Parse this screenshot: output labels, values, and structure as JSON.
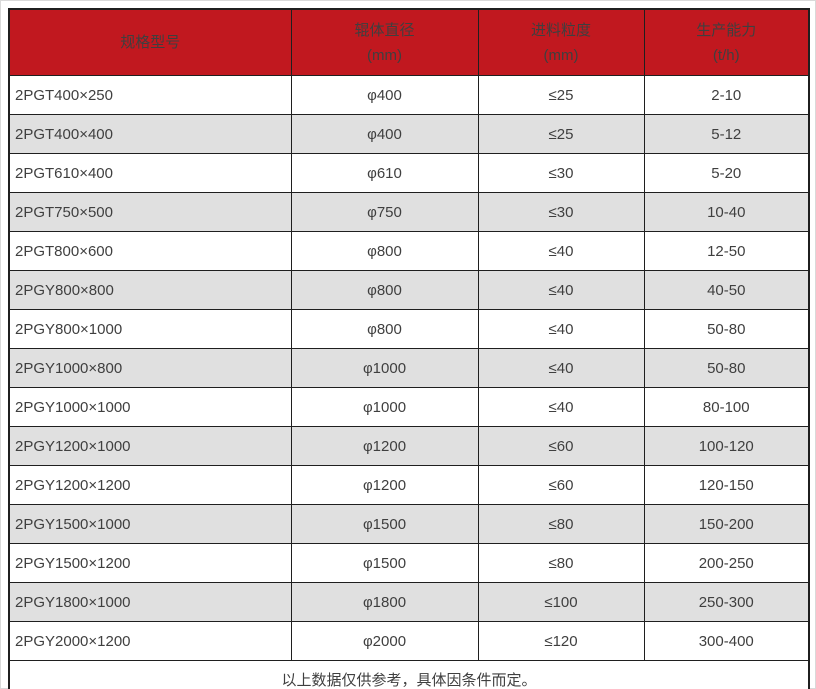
{
  "table": {
    "columns": [
      {
        "label": "规格型号",
        "unit": ""
      },
      {
        "label": "辊体直径",
        "unit": "(mm)"
      },
      {
        "label": "进料粒度",
        "unit": "(mm)"
      },
      {
        "label": "生产能力",
        "unit": "(t/h)"
      }
    ],
    "footer_note": "以上数据仅供参考，具体因条件而定。",
    "colors": {
      "header_bg": "#c1181f",
      "header_text": "#ffffff",
      "row_bg": "#ffffff",
      "row_alt_bg": "#e0e0e0",
      "border": "#1f1f1f",
      "text": "#3f3f3f"
    }
  },
  "chart_data": {
    "type": "table",
    "title": "",
    "columns": [
      "规格型号",
      "辊体直径 (mm)",
      "进料粒度 (mm)",
      "生产能力 (t/h)"
    ],
    "rows": [
      [
        "2PGT400×250",
        "φ400",
        "≤25",
        "2-10"
      ],
      [
        "2PGT400×400",
        "φ400",
        "≤25",
        "5-12"
      ],
      [
        "2PGT610×400",
        "φ610",
        "≤30",
        "5-20"
      ],
      [
        "2PGT750×500",
        "φ750",
        "≤30",
        "10-40"
      ],
      [
        "2PGT800×600",
        "φ800",
        "≤40",
        "12-50"
      ],
      [
        "2PGY800×800",
        "φ800",
        "≤40",
        "40-50"
      ],
      [
        "2PGY800×1000",
        "φ800",
        "≤40",
        "50-80"
      ],
      [
        "2PGY1000×800",
        "φ1000",
        "≤40",
        "50-80"
      ],
      [
        "2PGY1000×1000",
        "φ1000",
        "≤40",
        "80-100"
      ],
      [
        "2PGY1200×1000",
        "φ1200",
        "≤60",
        "100-120"
      ],
      [
        "2PGY1200×1200",
        "φ1200",
        "≤60",
        "120-150"
      ],
      [
        "2PGY1500×1000",
        "φ1500",
        "≤80",
        "150-200"
      ],
      [
        "2PGY1500×1200",
        "φ1500",
        "≤80",
        "200-250"
      ],
      [
        "2PGY1800×1000",
        "φ1800",
        "≤100",
        "250-300"
      ],
      [
        "2PGY2000×1200",
        "φ2000",
        "≤120",
        "300-400"
      ]
    ],
    "footer": "以上数据仅供参考，具体因条件而定。"
  }
}
